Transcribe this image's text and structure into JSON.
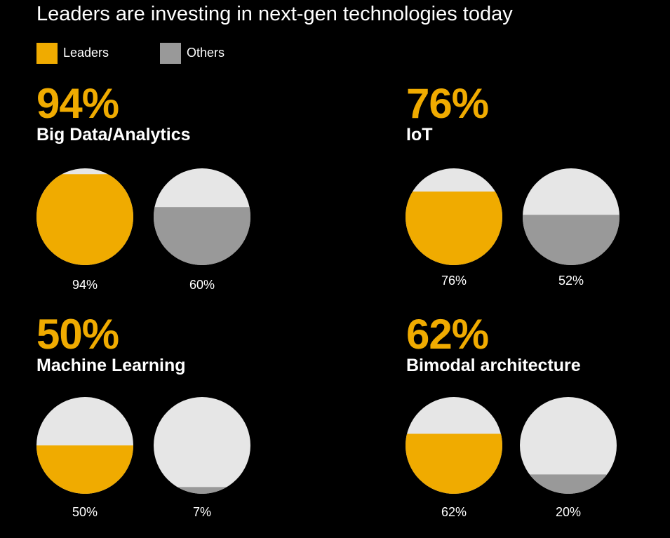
{
  "title": "Leaders are investing in next-gen technologies today",
  "legend": [
    {
      "label": "Leaders",
      "color": "#f0ab00"
    },
    {
      "label": "Others",
      "color": "#999999"
    }
  ],
  "colors": {
    "empty": "#e6e6e6",
    "background": "#000000"
  },
  "chart_data": [
    {
      "type": "fill-circle",
      "category": "Big Data/Analytics",
      "headline": "94%",
      "series": [
        {
          "name": "Leaders",
          "values": [
            94
          ],
          "label": "94%"
        },
        {
          "name": "Others",
          "values": [
            60
          ],
          "label": "60%"
        }
      ]
    },
    {
      "type": "fill-circle",
      "category": "IoT",
      "headline": "76%",
      "series": [
        {
          "name": "Leaders",
          "values": [
            76
          ],
          "label": "76%"
        },
        {
          "name": "Others",
          "values": [
            52
          ],
          "label": "52%"
        }
      ]
    },
    {
      "type": "fill-circle",
      "category": "Machine Learning",
      "headline": "50%",
      "series": [
        {
          "name": "Leaders",
          "values": [
            50
          ],
          "label": "50%"
        },
        {
          "name": "Others",
          "values": [
            7
          ],
          "label": "7%"
        }
      ]
    },
    {
      "type": "fill-circle",
      "category": "Bimodal architecture",
      "headline": "62%",
      "series": [
        {
          "name": "Leaders",
          "values": [
            62
          ],
          "label": "62%"
        },
        {
          "name": "Others",
          "values": [
            20
          ],
          "label": "20%"
        }
      ]
    }
  ]
}
